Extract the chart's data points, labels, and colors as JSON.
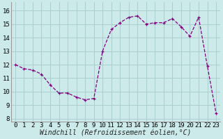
{
  "x_all": [
    0,
    1,
    2,
    3,
    4,
    5,
    6,
    7,
    8,
    9,
    10,
    11,
    12,
    13,
    14,
    15,
    16,
    17,
    18,
    19,
    20,
    21,
    22,
    23
  ],
  "y_all": [
    12.0,
    11.7,
    11.6,
    11.3,
    10.5,
    9.9,
    9.9,
    9.6,
    9.4,
    9.5,
    13.0,
    14.6,
    15.1,
    15.5,
    15.6,
    15.0,
    15.1,
    15.1,
    15.4,
    14.8,
    14.1,
    15.5,
    11.9,
    8.4
  ],
  "line_color": "#800080",
  "marker": "+",
  "bg_color": "#cceaea",
  "grid_color": "#aacfcf",
  "xlabel": "Windchill (Refroidissement éolien,°C)",
  "xlabel_fontsize": 7,
  "yticks": [
    8,
    9,
    10,
    11,
    12,
    13,
    14,
    15,
    16
  ],
  "xticks": [
    0,
    1,
    2,
    3,
    4,
    5,
    6,
    7,
    8,
    9,
    10,
    11,
    12,
    13,
    14,
    15,
    16,
    17,
    18,
    19,
    20,
    21,
    22,
    23
  ],
  "ylim": [
    7.8,
    16.6
  ],
  "xlim": [
    -0.5,
    23.5
  ],
  "tick_fontsize": 6.5,
  "markersize": 3.5,
  "linewidth": 0.9
}
